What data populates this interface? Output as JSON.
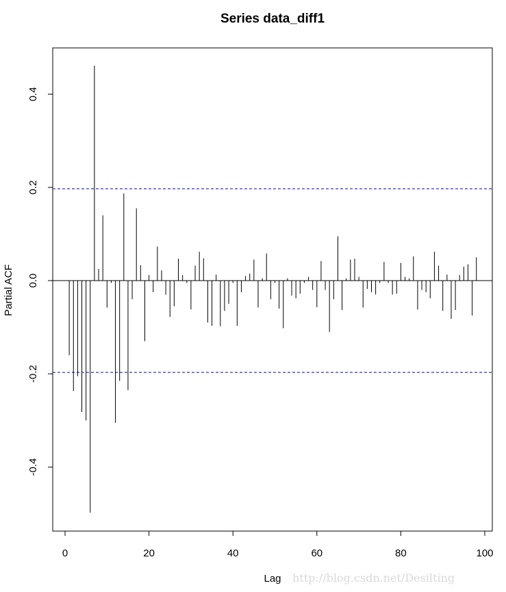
{
  "watermark": "http://blog.csdn.net/Desilting",
  "chart_data": {
    "type": "bar",
    "title": "Series  data_diff1",
    "xlabel": "Lag",
    "ylabel": "Partial ACF",
    "xlim": [
      0,
      100
    ],
    "ylim": [
      -0.5,
      0.46
    ],
    "x_ticks": [
      0,
      20,
      40,
      60,
      80,
      100
    ],
    "y_ticks": [
      -0.4,
      -0.2,
      0.0,
      0.2,
      0.4
    ],
    "x_tick_labels": [
      "0",
      "20",
      "40",
      "60",
      "80",
      "100"
    ],
    "y_tick_labels": [
      "-0.4",
      "-0.2",
      "0.0",
      "0.2",
      "0.4"
    ],
    "confidence_limit": 0.197,
    "confidence_line_color": "#0000cc",
    "bar_color": "#000000",
    "grid": false,
    "lags": [
      1,
      2,
      3,
      4,
      5,
      6,
      7,
      8,
      9,
      10,
      11,
      12,
      13,
      14,
      15,
      16,
      17,
      18,
      19,
      20,
      21,
      22,
      23,
      24,
      25,
      26,
      27,
      28,
      29,
      30,
      31,
      32,
      33,
      34,
      35,
      36,
      37,
      38,
      39,
      40,
      41,
      42,
      43,
      44,
      45,
      46,
      47,
      48,
      49,
      50,
      51,
      52,
      53,
      54,
      55,
      56,
      57,
      58,
      59,
      60,
      61,
      62,
      63,
      64,
      65,
      66,
      67,
      68,
      69,
      70,
      71,
      72,
      73,
      74,
      75,
      76,
      77,
      78,
      79,
      80,
      81,
      82,
      83,
      84,
      85,
      86,
      87,
      88,
      89,
      90,
      91,
      92,
      93,
      94,
      95,
      96,
      97,
      98
    ],
    "values": [
      -0.16,
      -0.237,
      -0.205,
      -0.282,
      -0.3,
      -0.498,
      0.461,
      0.025,
      0.14,
      -0.058,
      -0.005,
      -0.305,
      -0.215,
      0.187,
      -0.235,
      -0.04,
      0.155,
      0.033,
      -0.13,
      0.012,
      -0.025,
      0.073,
      0.022,
      -0.03,
      -0.078,
      -0.055,
      0.047,
      0.012,
      -0.005,
      -0.062,
      0.032,
      0.062,
      0.048,
      -0.09,
      -0.097,
      0.013,
      -0.098,
      -0.065,
      -0.05,
      -0.005,
      -0.097,
      -0.025,
      0.01,
      0.015,
      0.045,
      -0.058,
      0.005,
      0.058,
      -0.04,
      -0.005,
      -0.06,
      -0.102,
      0.005,
      -0.032,
      -0.038,
      -0.028,
      -0.005,
      0.008,
      -0.02,
      -0.057,
      0.042,
      -0.02,
      -0.11,
      -0.04,
      0.095,
      -0.063,
      0.005,
      0.045,
      0.047,
      0.008,
      -0.058,
      -0.018,
      -0.025,
      -0.03,
      -0.005,
      0.04,
      -0.005,
      -0.03,
      -0.028,
      0.038,
      0.008,
      0.005,
      0.052,
      -0.062,
      -0.02,
      -0.025,
      -0.038,
      0.062,
      0.032,
      -0.065,
      0.013,
      -0.082,
      -0.063,
      0.012,
      0.03,
      0.035,
      -0.075,
      0.05
    ]
  }
}
